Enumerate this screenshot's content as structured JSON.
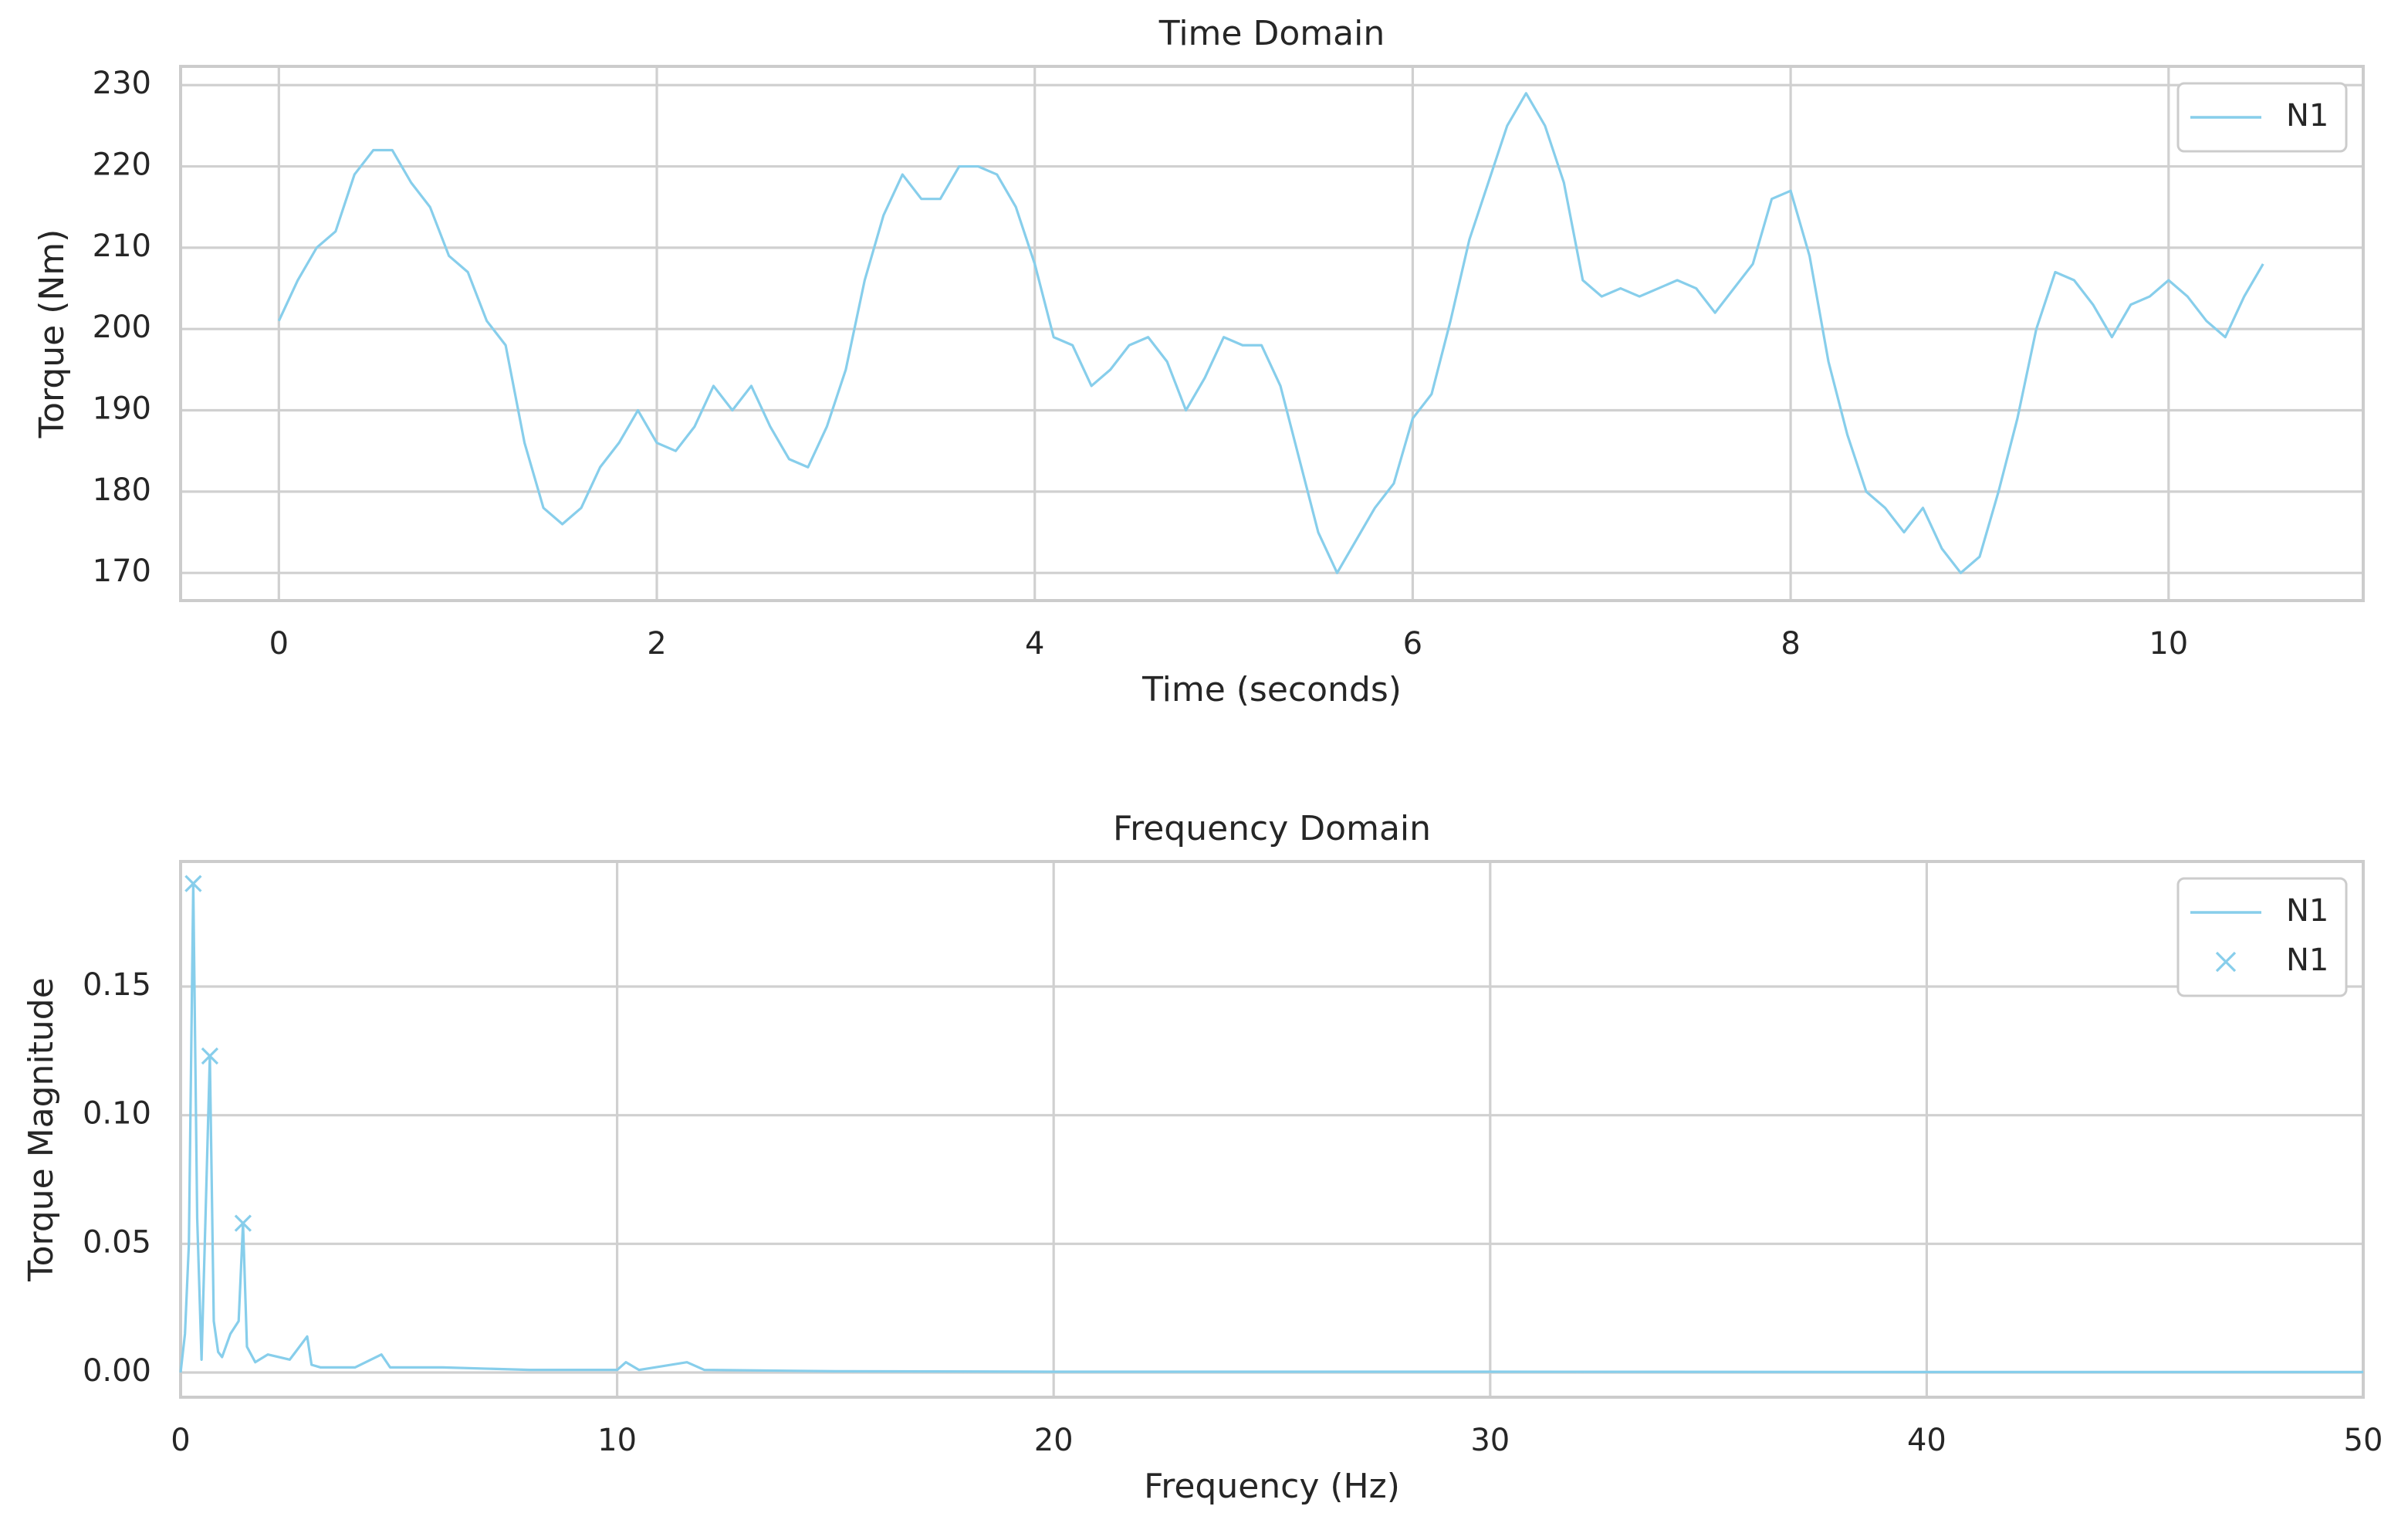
{
  "chart_data": [
    {
      "type": "line",
      "title": "Time Domain",
      "xlabel": "Time (seconds)",
      "ylabel": "Torque (Nm)",
      "series": [
        {
          "name": "N1",
          "color": "#87ceeb",
          "x": [
            0,
            0.1,
            0.2,
            0.3,
            0.4,
            0.5,
            0.6,
            0.7,
            0.8,
            0.9,
            1,
            1.1,
            1.2,
            1.3,
            1.4,
            1.5,
            1.6,
            1.7,
            1.8,
            1.9,
            2,
            2.1,
            2.2,
            2.3,
            2.4,
            2.5,
            2.6,
            2.7,
            2.8,
            2.9,
            3,
            3.1,
            3.2,
            3.3,
            3.4,
            3.5,
            3.6,
            3.7,
            3.8,
            3.9,
            4,
            4.1,
            4.2,
            4.3,
            4.4,
            4.5,
            4.6,
            4.7,
            4.8,
            4.9,
            5,
            5.1,
            5.2,
            5.3,
            5.4,
            5.5,
            5.6,
            5.7,
            5.8,
            5.9,
            6,
            6.1,
            6.2,
            6.3,
            6.4,
            6.5,
            6.6,
            6.7,
            6.8,
            6.9,
            7,
            7.1,
            7.2,
            7.3,
            7.4,
            7.5,
            7.6,
            7.7,
            7.8,
            7.9,
            8,
            8.1,
            8.2,
            8.3,
            8.4,
            8.5,
            8.6,
            8.7,
            8.8,
            8.9,
            9,
            9.1,
            9.2,
            9.3,
            9.4,
            9.5,
            9.6,
            9.7,
            9.8,
            9.9,
            10,
            10.1,
            10.2,
            10.3,
            10.4,
            10.5
          ],
          "values": [
            201,
            206,
            210,
            212,
            219,
            222,
            222,
            218,
            215,
            209,
            207,
            201,
            198,
            186,
            178,
            176,
            178,
            183,
            186,
            190,
            186,
            185,
            188,
            193,
            190,
            193,
            188,
            184,
            183,
            188,
            195,
            206,
            214,
            219,
            216,
            216,
            220,
            220,
            219,
            215,
            208,
            199,
            198,
            193,
            195,
            198,
            199,
            196,
            190,
            194,
            199,
            198,
            198,
            193,
            184,
            175,
            170,
            174,
            178,
            181,
            189,
            192,
            201,
            211,
            218,
            225,
            229,
            225,
            218,
            206,
            204,
            205,
            204,
            205,
            206,
            205,
            202,
            205,
            208,
            216,
            217,
            209,
            196,
            187,
            180,
            178,
            175,
            178,
            173,
            170,
            172,
            180,
            189,
            200,
            207,
            206,
            203,
            199,
            203,
            204,
            206,
            204,
            201,
            199,
            204,
            208
          ]
        }
      ],
      "xlim": [
        -0.52,
        11.03
      ],
      "xticks": [
        0,
        2,
        4,
        6,
        8,
        10
      ],
      "ylim": [
        166.6,
        232.3
      ],
      "yticks": [
        170,
        180,
        190,
        200,
        210,
        220,
        230
      ],
      "grid": true,
      "legend": "upper right"
    },
    {
      "type": "line",
      "title": "Frequency Domain",
      "xlabel": "Frequency (Hz)",
      "ylabel": "Torque Magnitude",
      "series": [
        {
          "name": "N1",
          "color": "#87ceeb",
          "x": [
            0,
            0.1,
            0.19,
            0.29,
            0.38,
            0.48,
            0.57,
            0.67,
            0.76,
            0.86,
            0.95,
            1.14,
            1.33,
            1.43,
            1.52,
            1.71,
            2,
            2.5,
            2.9,
            3,
            3.2,
            4,
            4.6,
            4.8,
            6,
            8,
            10,
            10.2,
            10.5,
            11.6,
            12,
            15,
            20,
            30,
            40,
            50
          ],
          "values": [
            0,
            0.015,
            0.05,
            0.19,
            0.06,
            0.005,
            0.06,
            0.123,
            0.02,
            0.008,
            0.006,
            0.015,
            0.02,
            0.058,
            0.01,
            0.004,
            0.007,
            0.005,
            0.014,
            0.003,
            0.002,
            0.002,
            0.007,
            0.002,
            0.002,
            0.001,
            0.001,
            0.004,
            0.001,
            0.004,
            0.001,
            0.0005,
            0.0003,
            0.0003,
            0.0002,
            0.0002
          ]
        },
        {
          "name": "N1",
          "color": "#87ceeb",
          "marker": "x",
          "x": [
            0.29,
            0.67,
            1.43
          ],
          "values": [
            0.19,
            0.123,
            0.058
          ]
        }
      ],
      "xlim": [
        0,
        50
      ],
      "xticks": [
        0,
        10,
        20,
        30,
        40,
        50
      ],
      "ylim": [
        -0.0096,
        0.1986
      ],
      "yticks": [
        {
          "value": 0,
          "label": "0.00"
        },
        0.05,
        {
          "value": 0.1,
          "label": "0.10"
        },
        0.15
      ],
      "grid": true,
      "legend": "upper right"
    }
  ]
}
